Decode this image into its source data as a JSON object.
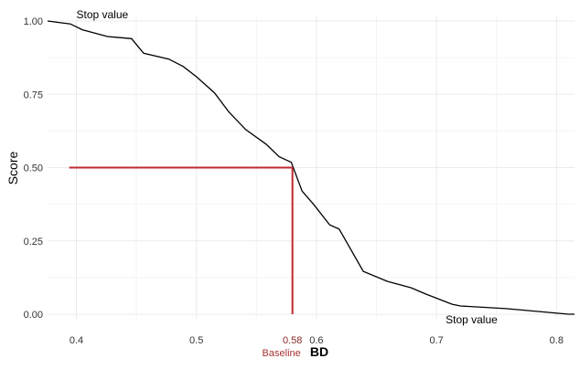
{
  "chart_data": {
    "type": "line",
    "xlabel": "BD",
    "ylabel": "Score",
    "xlim": [
      0.376,
      0.815
    ],
    "ylim": [
      0,
      1
    ],
    "x_ticks": [
      0.4,
      0.5,
      0.6,
      0.7,
      0.8
    ],
    "x_tick_labels": [
      "0.4",
      "0.5",
      "0.6",
      "0.7",
      "0.8"
    ],
    "y_ticks": [
      0,
      0.25,
      0.5,
      0.75,
      1.0
    ],
    "y_tick_labels": [
      "0.00",
      "0.25",
      "0.50",
      "0.75",
      "1.00"
    ],
    "grid": true,
    "series": [
      {
        "color": "#000000",
        "x": [
          0.376,
          0.395,
          0.405,
          0.426,
          0.446,
          0.456,
          0.477,
          0.489,
          0.5,
          0.515,
          0.527,
          0.541,
          0.558,
          0.569,
          0.579,
          0.588,
          0.598,
          0.611,
          0.619,
          0.639,
          0.659,
          0.679,
          0.691,
          0.713,
          0.72,
          0.758,
          0.81,
          0.815
        ],
        "y": [
          1.0,
          0.99,
          0.97,
          0.947,
          0.94,
          0.89,
          0.87,
          0.845,
          0.81,
          0.755,
          0.69,
          0.63,
          0.58,
          0.537,
          0.518,
          0.42,
          0.373,
          0.305,
          0.29,
          0.146,
          0.112,
          0.09,
          0.069,
          0.034,
          0.028,
          0.019,
          0.0,
          0.0
        ]
      }
    ],
    "baseline": {
      "x": 0.58,
      "y": 0.5,
      "x_start": 0.394,
      "color": "#c0282d",
      "value_label": "0.58",
      "label": "Baseline"
    },
    "annotations": [
      {
        "text": "Stop value",
        "x": 0.4,
        "y": 1.0
      },
      {
        "text": "Stop value",
        "x": 0.7,
        "y": 0.0
      }
    ]
  }
}
